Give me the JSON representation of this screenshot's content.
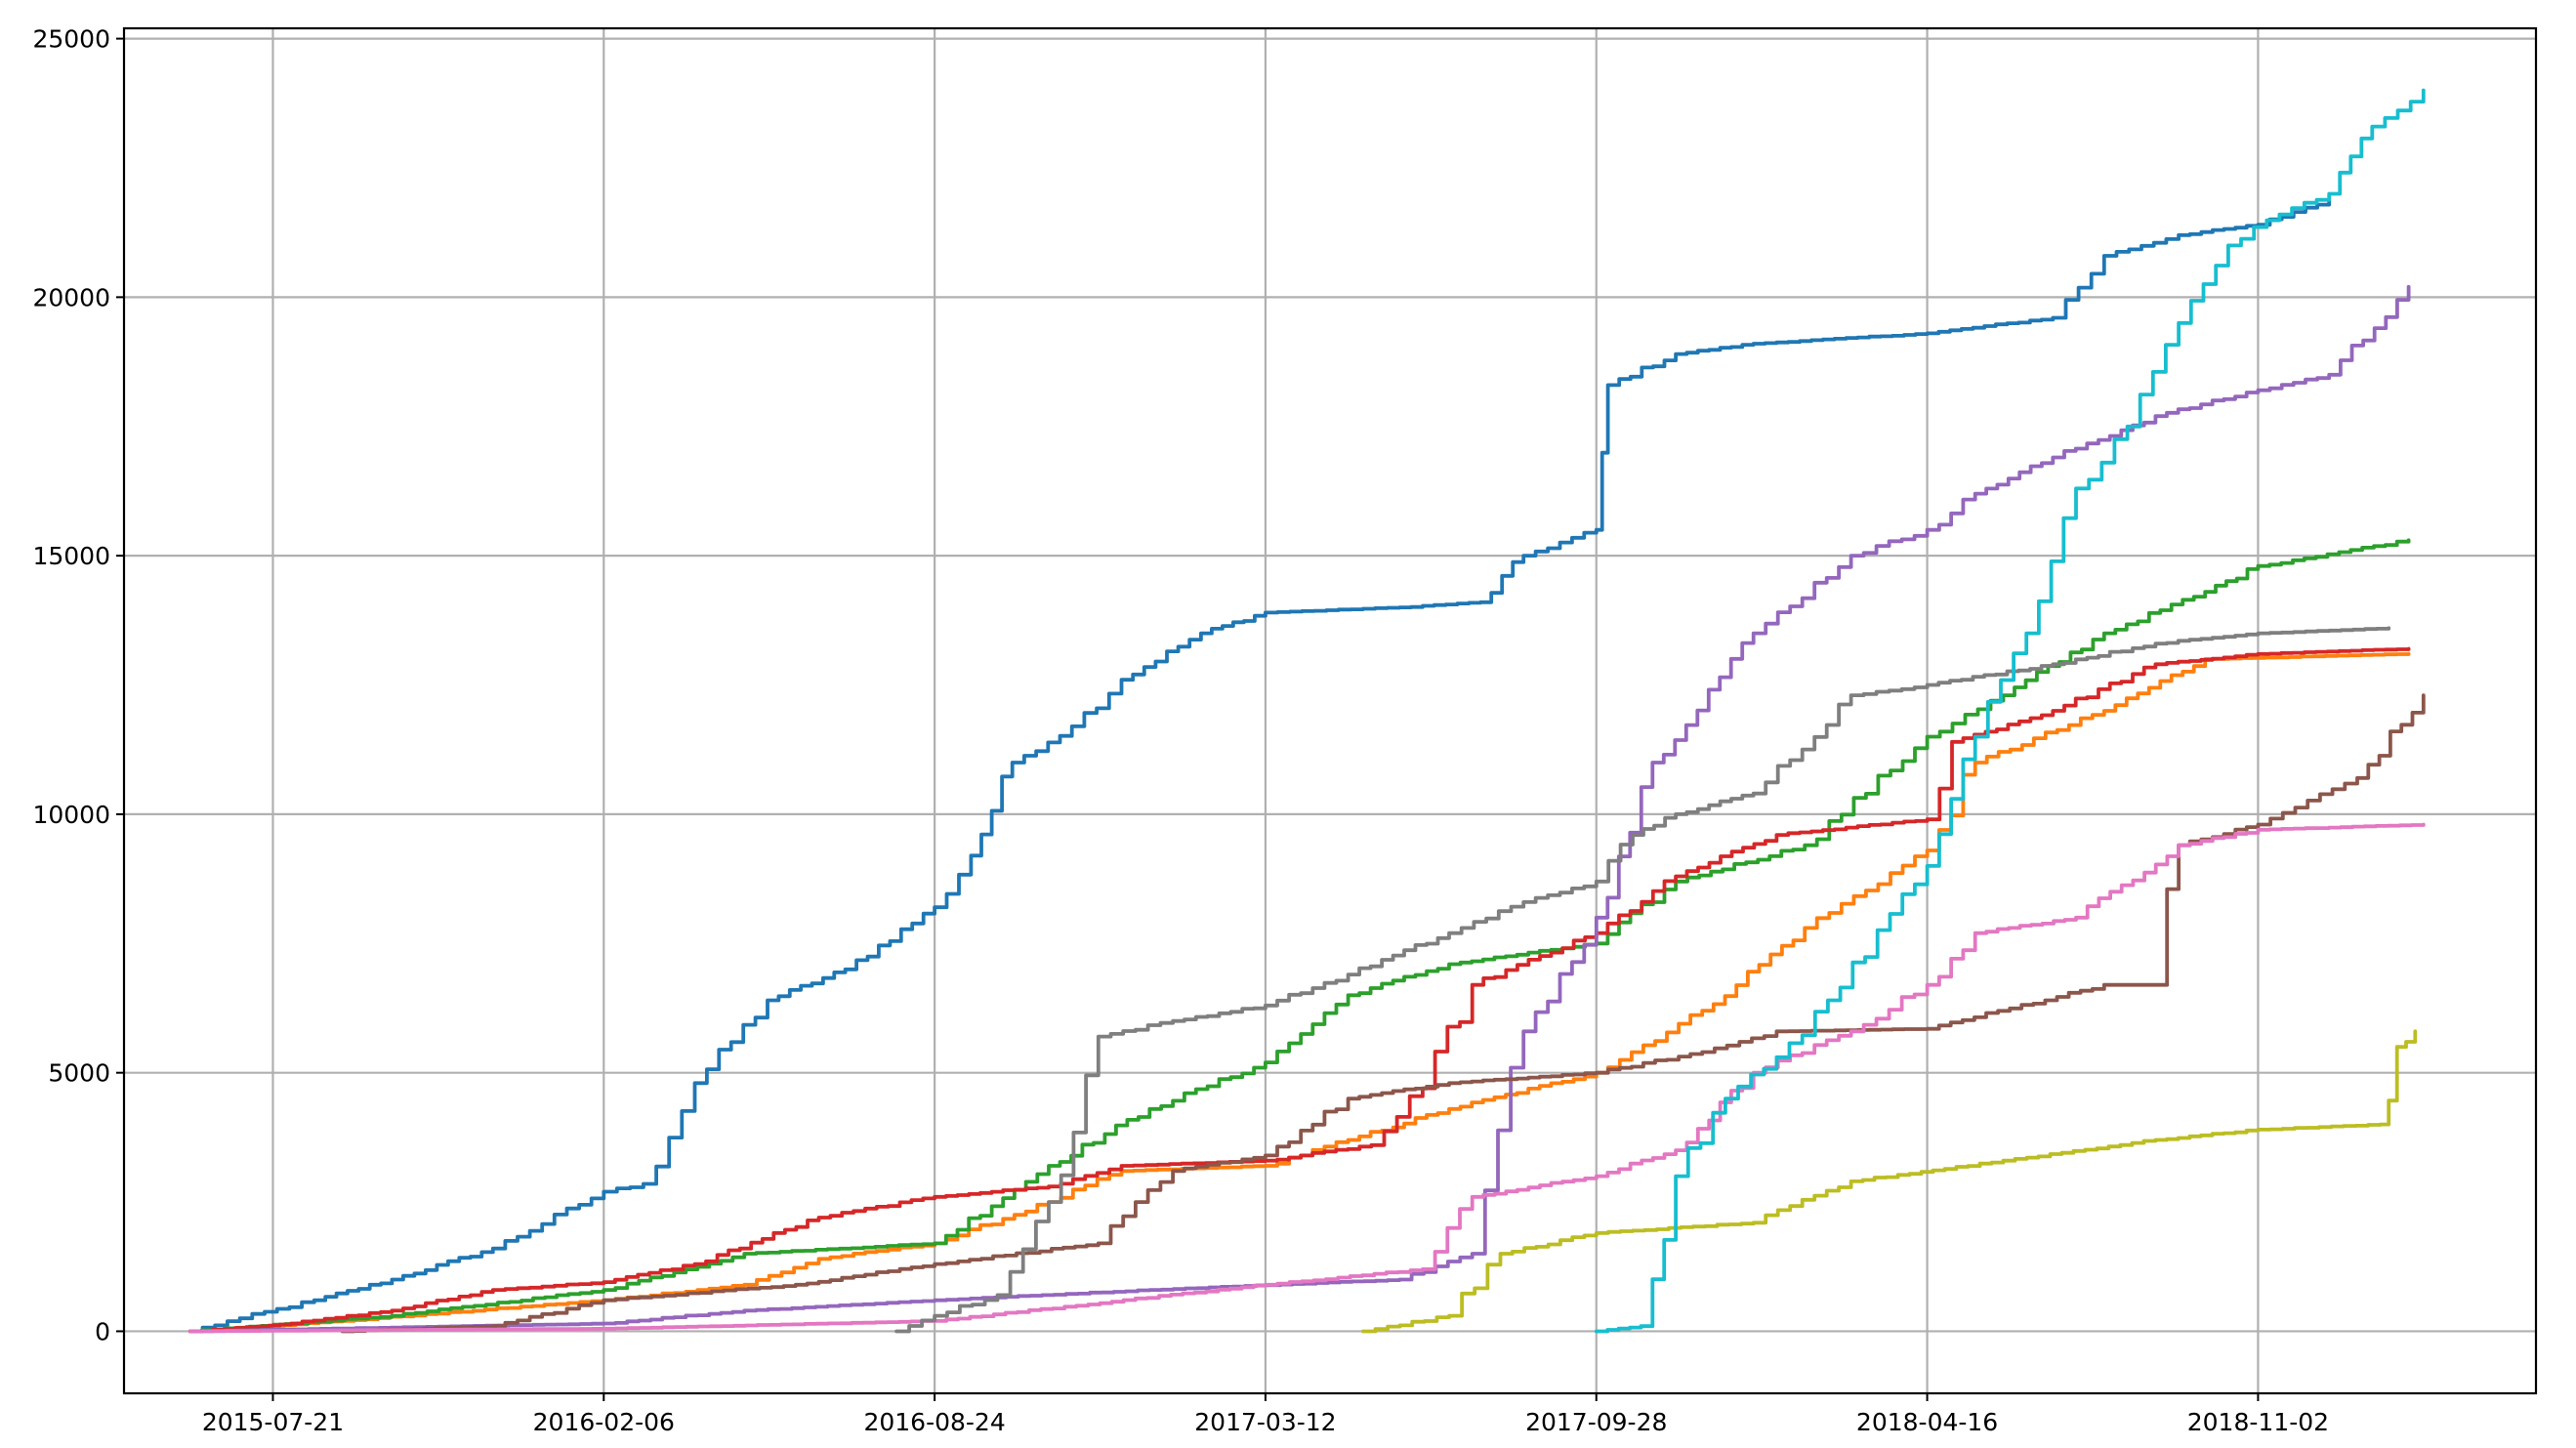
{
  "chart_data": {
    "type": "line",
    "title": "",
    "xlabel": "",
    "ylabel": "",
    "grid": true,
    "legend": "none",
    "x_ticks": [
      "2015-07-21",
      "2016-02-06",
      "2016-08-24",
      "2017-03-12",
      "2017-09-28",
      "2018-04-16",
      "2018-11-02"
    ],
    "y_ticks": [
      "0",
      "5000",
      "10000",
      "15000",
      "20000",
      "25000"
    ],
    "xlim": [
      "2015-04-22",
      "2019-04-19"
    ],
    "ylim": [
      -1200,
      25200
    ],
    "series": [
      {
        "color": "#1f77b4",
        "points": [
          [
            "2015-06-01",
            0
          ],
          [
            "2015-07-01",
            250
          ],
          [
            "2015-08-15",
            600
          ],
          [
            "2015-10-01",
            1000
          ],
          [
            "2015-12-01",
            1600
          ],
          [
            "2016-02-06",
            2700
          ],
          [
            "2016-03-01",
            2850
          ],
          [
            "2016-04-01",
            4800
          ],
          [
            "2016-05-15",
            6400
          ],
          [
            "2016-07-01",
            7000
          ],
          [
            "2016-08-24",
            8200
          ],
          [
            "2016-09-15",
            9200
          ],
          [
            "2016-10-10",
            11000
          ],
          [
            "2016-11-15",
            11700
          ],
          [
            "2016-12-15",
            12600
          ],
          [
            "2017-02-01",
            13500
          ],
          [
            "2017-03-12",
            13900
          ],
          [
            "2017-06-01",
            14000
          ],
          [
            "2017-07-20",
            14100
          ],
          [
            "2017-08-15",
            15000
          ],
          [
            "2017-09-28",
            15500
          ],
          [
            "2017-10-05",
            18300
          ],
          [
            "2017-11-15",
            18900
          ],
          [
            "2018-01-01",
            19100
          ],
          [
            "2018-04-16",
            19300
          ],
          [
            "2018-07-01",
            19600
          ],
          [
            "2018-08-01",
            20800
          ],
          [
            "2018-09-15",
            21200
          ],
          [
            "2018-11-02",
            21400
          ],
          [
            "2018-12-15",
            21900
          ]
        ]
      },
      {
        "color": "#ff7f0e",
        "points": [
          [
            "2015-06-01",
            0
          ],
          [
            "2015-09-01",
            200
          ],
          [
            "2016-02-06",
            600
          ],
          [
            "2016-05-01",
            900
          ],
          [
            "2016-06-15",
            1400
          ],
          [
            "2016-08-24",
            1700
          ],
          [
            "2016-11-01",
            2500
          ],
          [
            "2016-12-15",
            3100
          ],
          [
            "2017-03-12",
            3200
          ],
          [
            "2017-05-01",
            3700
          ],
          [
            "2017-07-01",
            4300
          ],
          [
            "2017-09-28",
            5000
          ],
          [
            "2017-12-01",
            6200
          ],
          [
            "2018-02-01",
            7800
          ],
          [
            "2018-04-16",
            9300
          ],
          [
            "2018-05-15",
            11000
          ],
          [
            "2018-08-01",
            12000
          ],
          [
            "2018-10-01",
            13000
          ],
          [
            "2019-02-01",
            13100
          ]
        ]
      },
      {
        "color": "#2ca02c",
        "points": [
          [
            "2015-06-01",
            0
          ],
          [
            "2015-10-01",
            300
          ],
          [
            "2016-02-06",
            800
          ],
          [
            "2016-05-01",
            1500
          ],
          [
            "2016-08-24",
            1700
          ],
          [
            "2016-11-01",
            3200
          ],
          [
            "2017-01-01",
            4300
          ],
          [
            "2017-03-12",
            5200
          ],
          [
            "2017-05-01",
            6500
          ],
          [
            "2017-07-01",
            7100
          ],
          [
            "2017-09-28",
            7500
          ],
          [
            "2017-11-15",
            8700
          ],
          [
            "2018-02-01",
            9400
          ],
          [
            "2018-04-16",
            11500
          ],
          [
            "2018-06-01",
            12300
          ],
          [
            "2018-08-01",
            13500
          ],
          [
            "2018-10-01",
            14300
          ],
          [
            "2018-11-02",
            14800
          ],
          [
            "2019-02-01",
            15300
          ]
        ]
      },
      {
        "color": "#d62728",
        "points": [
          [
            "2015-06-01",
            0
          ],
          [
            "2015-08-01",
            150
          ],
          [
            "2015-10-01",
            400
          ],
          [
            "2015-12-01",
            800
          ],
          [
            "2016-02-06",
            950
          ],
          [
            "2016-04-01",
            1300
          ],
          [
            "2016-06-15",
            2200
          ],
          [
            "2016-08-24",
            2600
          ],
          [
            "2016-11-01",
            2800
          ],
          [
            "2016-12-15",
            3200
          ],
          [
            "2017-03-12",
            3300
          ],
          [
            "2017-05-15",
            3600
          ],
          [
            "2017-06-15",
            4700
          ],
          [
            "2017-07-15",
            6700
          ],
          [
            "2017-09-28",
            7700
          ],
          [
            "2017-11-15",
            8800
          ],
          [
            "2018-01-15",
            9600
          ],
          [
            "2018-04-16",
            9900
          ],
          [
            "2018-05-01",
            11400
          ],
          [
            "2018-07-01",
            12000
          ],
          [
            "2018-09-01",
            12900
          ],
          [
            "2018-11-02",
            13100
          ],
          [
            "2019-02-01",
            13200
          ]
        ]
      },
      {
        "color": "#9467bd",
        "points": [
          [
            "2015-06-01",
            0
          ],
          [
            "2016-02-06",
            150
          ],
          [
            "2016-05-01",
            400
          ],
          [
            "2016-08-24",
            600
          ],
          [
            "2017-01-01",
            800
          ],
          [
            "2017-06-01",
            1000
          ],
          [
            "2017-07-15",
            1500
          ],
          [
            "2017-08-15",
            5800
          ],
          [
            "2017-09-28",
            8000
          ],
          [
            "2017-11-01",
            11000
          ],
          [
            "2018-01-01",
            13500
          ],
          [
            "2018-03-01",
            15000
          ],
          [
            "2018-04-16",
            15500
          ],
          [
            "2018-05-15",
            16200
          ],
          [
            "2018-07-01",
            16900
          ],
          [
            "2018-09-01",
            17700
          ],
          [
            "2018-11-02",
            18200
          ],
          [
            "2018-12-15",
            18500
          ],
          [
            "2019-02-01",
            20200
          ]
        ]
      },
      {
        "color": "#8c564b",
        "points": [
          [
            "2015-09-01",
            0
          ],
          [
            "2015-12-01",
            100
          ],
          [
            "2016-02-06",
            600
          ],
          [
            "2016-06-01",
            900
          ],
          [
            "2016-08-24",
            1300
          ],
          [
            "2016-12-01",
            1700
          ],
          [
            "2017-01-15",
            3100
          ],
          [
            "2017-03-12",
            3400
          ],
          [
            "2017-05-01",
            4500
          ],
          [
            "2017-07-01",
            4800
          ],
          [
            "2017-09-28",
            5000
          ],
          [
            "2017-12-01",
            5400
          ],
          [
            "2018-01-15",
            5800
          ],
          [
            "2018-04-16",
            5850
          ],
          [
            "2018-08-01",
            6700
          ],
          [
            "2018-09-01",
            6700
          ],
          [
            "2018-09-15",
            9400
          ],
          [
            "2018-11-02",
            9800
          ],
          [
            "2019-01-01",
            10700
          ],
          [
            "2019-02-10",
            12300
          ]
        ]
      },
      {
        "color": "#e377c2",
        "points": [
          [
            "2015-06-01",
            0
          ],
          [
            "2016-02-06",
            50
          ],
          [
            "2016-08-24",
            200
          ],
          [
            "2017-03-12",
            900
          ],
          [
            "2017-06-15",
            1200
          ],
          [
            "2017-07-15",
            2600
          ],
          [
            "2017-09-28",
            3000
          ],
          [
            "2017-11-15",
            3500
          ],
          [
            "2018-01-01",
            5000
          ],
          [
            "2018-03-01",
            5800
          ],
          [
            "2018-04-16",
            6700
          ],
          [
            "2018-05-15",
            7700
          ],
          [
            "2018-07-15",
            8000
          ],
          [
            "2018-09-15",
            9400
          ],
          [
            "2018-11-02",
            9700
          ],
          [
            "2019-02-10",
            9800
          ]
        ]
      },
      {
        "color": "#7f7f7f",
        "points": [
          [
            "2016-08-01",
            0
          ],
          [
            "2016-08-24",
            300
          ],
          [
            "2016-10-01",
            700
          ],
          [
            "2016-11-01",
            2500
          ],
          [
            "2016-12-01",
            5700
          ],
          [
            "2017-01-15",
            6000
          ],
          [
            "2017-03-12",
            6300
          ],
          [
            "2017-05-01",
            6900
          ],
          [
            "2017-07-01",
            7700
          ],
          [
            "2017-08-15",
            8300
          ],
          [
            "2017-09-28",
            8700
          ],
          [
            "2017-10-20",
            9600
          ],
          [
            "2017-11-15",
            10000
          ],
          [
            "2018-01-01",
            10400
          ],
          [
            "2018-03-01",
            12300
          ],
          [
            "2018-04-16",
            12500
          ],
          [
            "2018-07-01",
            12900
          ],
          [
            "2018-09-01",
            13300
          ],
          [
            "2018-11-02",
            13500
          ],
          [
            "2019-01-20",
            13600
          ]
        ]
      },
      {
        "color": "#bcbd22",
        "points": [
          [
            "2017-05-10",
            0
          ],
          [
            "2017-07-01",
            300
          ],
          [
            "2017-08-01",
            1500
          ],
          [
            "2017-09-28",
            1900
          ],
          [
            "2018-01-01",
            2100
          ],
          [
            "2018-03-01",
            2900
          ],
          [
            "2018-06-01",
            3300
          ],
          [
            "2018-09-01",
            3700
          ],
          [
            "2018-11-02",
            3900
          ],
          [
            "2019-01-15",
            4000
          ],
          [
            "2019-01-25",
            5500
          ],
          [
            "2019-02-05",
            5800
          ]
        ]
      },
      {
        "color": "#17becf",
        "points": [
          [
            "2017-09-28",
            0
          ],
          [
            "2017-10-25",
            100
          ],
          [
            "2017-11-15",
            3000
          ],
          [
            "2017-12-15",
            4500
          ],
          [
            "2018-01-15",
            5300
          ],
          [
            "2018-02-15",
            6400
          ],
          [
            "2018-04-16",
            9000
          ],
          [
            "2018-05-15",
            11500
          ],
          [
            "2018-06-15",
            13500
          ],
          [
            "2018-07-15",
            16300
          ],
          [
            "2018-08-15",
            17500
          ],
          [
            "2018-09-15",
            19500
          ],
          [
            "2018-10-15",
            21000
          ],
          [
            "2018-11-15",
            21600
          ],
          [
            "2018-12-15",
            22000
          ],
          [
            "2019-01-10",
            23300
          ],
          [
            "2019-02-10",
            24000
          ]
        ]
      }
    ]
  }
}
